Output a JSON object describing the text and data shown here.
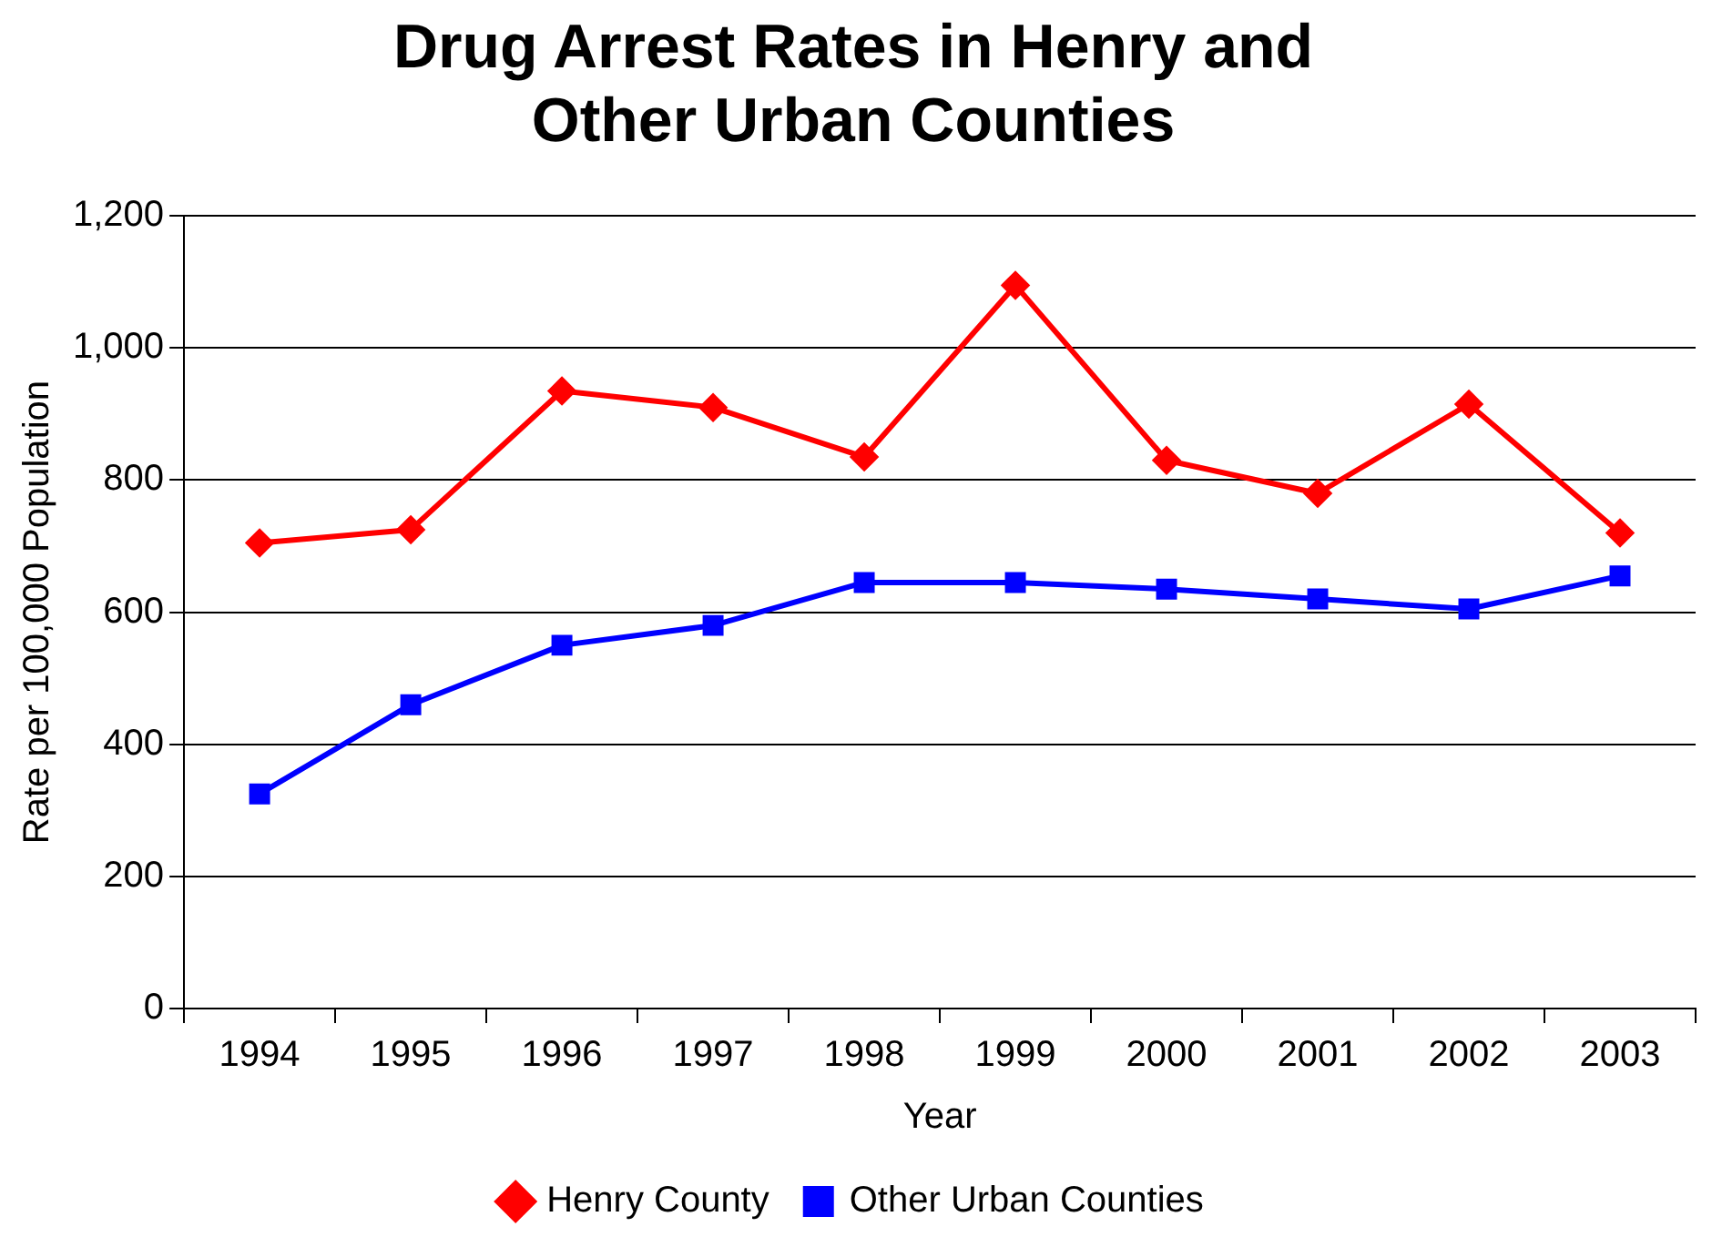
{
  "chart_data": {
    "type": "line",
    "title": "Drug Arrest Rates in Henry and Other Urban Counties",
    "xlabel": "Year",
    "ylabel": "Rate per 100,000 Population",
    "categories": [
      "1994",
      "1995",
      "1996",
      "1997",
      "1998",
      "1999",
      "2000",
      "2001",
      "2002",
      "2003"
    ],
    "series": [
      {
        "name": "Henry County",
        "color": "#ff0000",
        "marker": "diamond",
        "values": [
          705,
          725,
          935,
          910,
          835,
          1095,
          830,
          780,
          915,
          720
        ]
      },
      {
        "name": "Other Urban Counties",
        "color": "#0000ff",
        "marker": "square",
        "values": [
          325,
          460,
          550,
          580,
          645,
          645,
          635,
          620,
          605,
          655
        ]
      }
    ],
    "ylim": [
      0,
      1200
    ],
    "yticks": [
      0,
      200,
      400,
      600,
      800,
      {
        "value": 1000,
        "label": "1,000"
      },
      {
        "value": 1200,
        "label": "1,200"
      }
    ],
    "grid": "y",
    "legend": "bottom",
    "line_style": "solid"
  }
}
